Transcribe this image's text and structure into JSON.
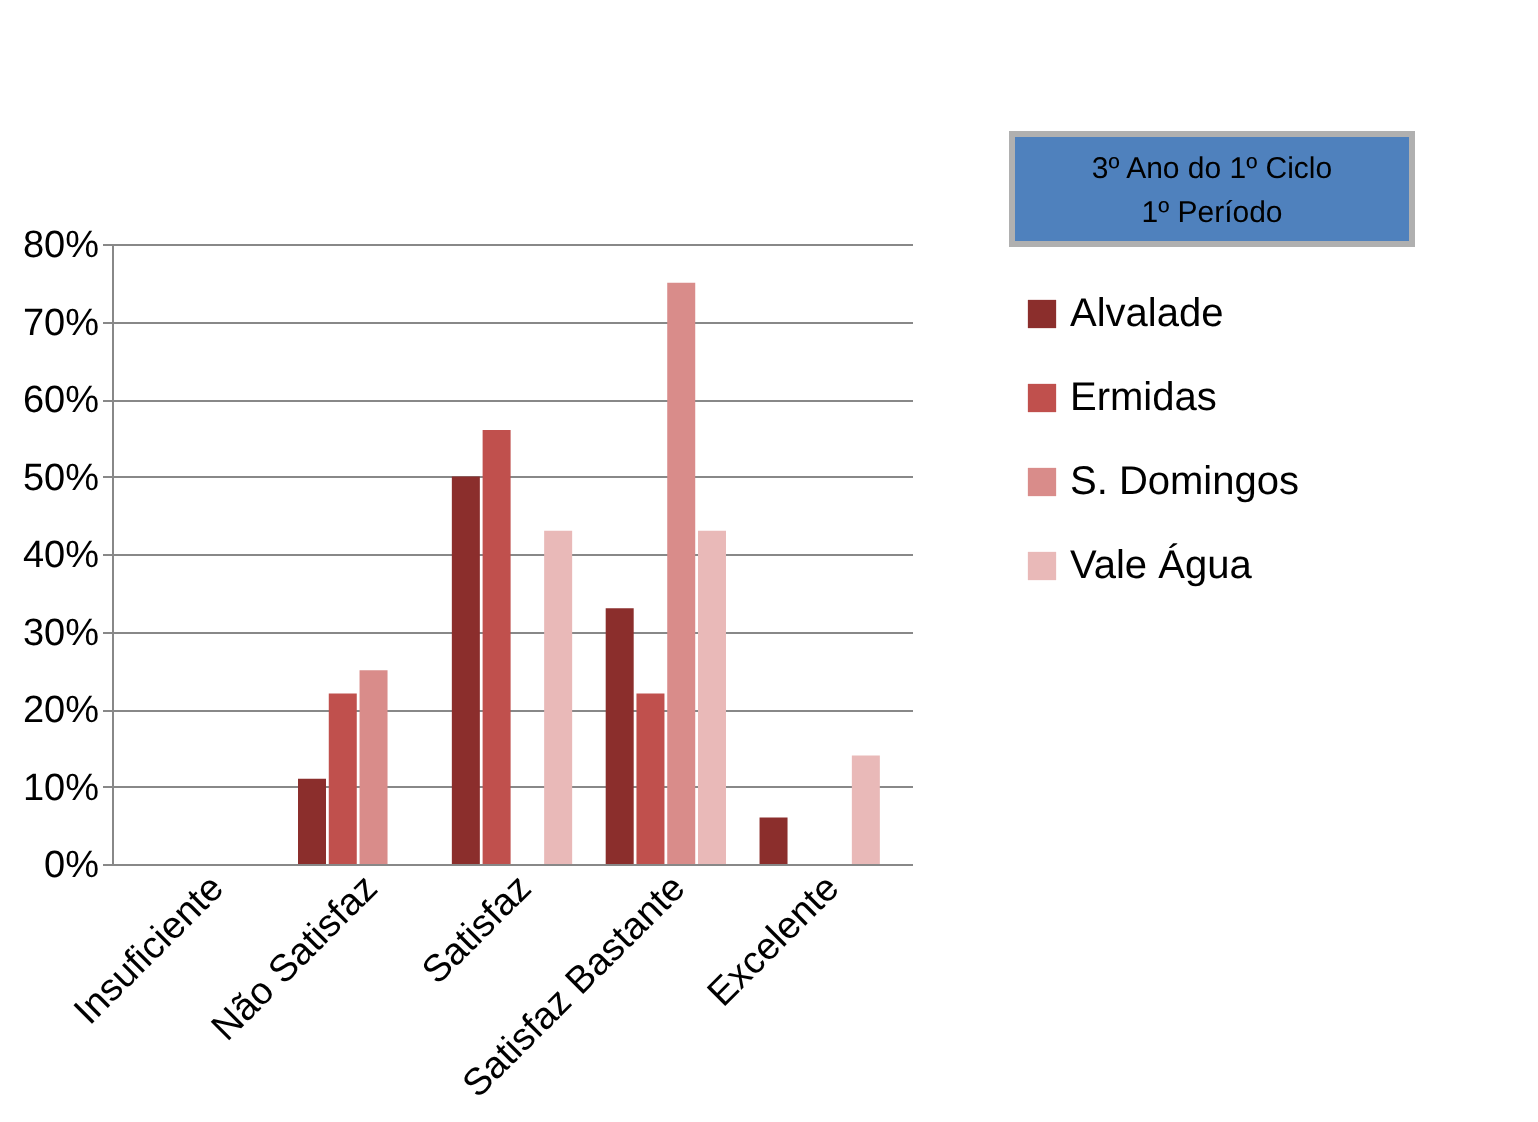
{
  "chart_data": {
    "type": "bar",
    "title": "3º Ano do 1º Ciclo",
    "subtitle": "1º Período",
    "categories": [
      "Insuficiente",
      "Não Satisfaz",
      "Satisfaz",
      "Satisfaz Bastante",
      "Excelente"
    ],
    "series": [
      {
        "name": "Alvalade",
        "color": "#8b2e2c",
        "values": [
          0,
          11,
          50,
          33,
          6
        ]
      },
      {
        "name": "Ermidas",
        "color": "#c0504d",
        "values": [
          0,
          22,
          56,
          22,
          0
        ]
      },
      {
        "name": "S. Domingos",
        "color": "#d98c8a",
        "values": [
          0,
          25,
          0,
          75,
          0
        ]
      },
      {
        "name": "Vale Água",
        "color": "#e9b9b8",
        "values": [
          0,
          0,
          43,
          43,
          14
        ]
      }
    ],
    "ylim": [
      0,
      80
    ],
    "yticks": [
      {
        "value": 0,
        "label": "0%"
      },
      {
        "value": 10,
        "label": "10%"
      },
      {
        "value": 20,
        "label": "20%"
      },
      {
        "value": 30,
        "label": "30%"
      },
      {
        "value": 40,
        "label": "40%"
      },
      {
        "value": 50,
        "label": "50%"
      },
      {
        "value": 60,
        "label": "60%"
      },
      {
        "value": 70,
        "label": "70%"
      },
      {
        "value": 80,
        "label": "80%"
      }
    ],
    "grid": "y",
    "legend": "right"
  }
}
